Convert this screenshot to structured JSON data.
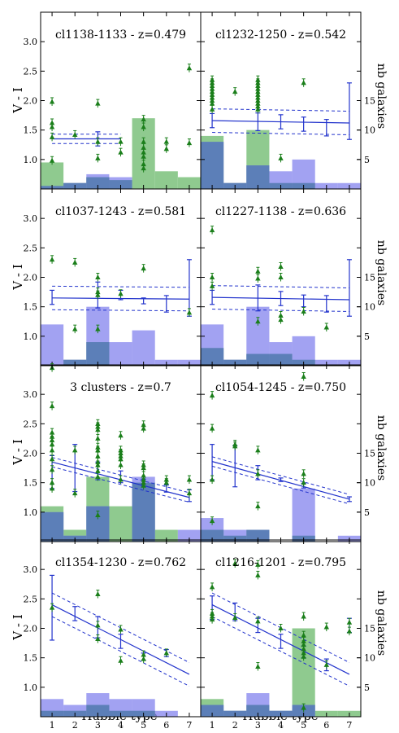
{
  "figure": {
    "ylabel": "V - I",
    "xlabel": "Hubble type",
    "right_label": "nb galaxies",
    "x_ticks": [
      "1",
      "2",
      "3",
      "4",
      "5",
      "6",
      "7"
    ],
    "y_ticks": [
      "1.0",
      "1.5",
      "2.0",
      "2.5",
      "3.0"
    ],
    "count_ticks": [
      "5",
      "10",
      "15"
    ]
  },
  "colors": {
    "points": "#1b7f1b",
    "fit": "#2233cc",
    "hist_green": "#8fca8f",
    "hist_blue": "#8888ee",
    "overlap": "#5c7fb8"
  },
  "chart_data": [
    {
      "type": "scatter+histogram",
      "title": "cl1138-1133 - z=0.479",
      "xlim": [
        0.5,
        7.5
      ],
      "ylim": [
        0.5,
        3.5
      ],
      "count_lim": [
        0,
        30
      ],
      "fit_line": {
        "x": [
          1,
          4
        ],
        "y": [
          1.35,
          1.35
        ],
        "band": 0.08
      },
      "error_bars": [
        {
          "x": 3,
          "y": 1.35,
          "err": 0.12
        }
      ],
      "points": [
        [
          1,
          1.98
        ],
        [
          1,
          1.62
        ],
        [
          1,
          1.55
        ],
        [
          1,
          1.38
        ],
        [
          1,
          0.98
        ],
        [
          2,
          1.42
        ],
        [
          3,
          1.95
        ],
        [
          3,
          1.3
        ],
        [
          3,
          1.02
        ],
        [
          4,
          1.3
        ],
        [
          4,
          1.12
        ],
        [
          5,
          1.68
        ],
        [
          5,
          1.55
        ],
        [
          5,
          1.3
        ],
        [
          5,
          1.2
        ],
        [
          5,
          1.12
        ],
        [
          5,
          1.05
        ],
        [
          5,
          0.92
        ],
        [
          5,
          0.85
        ],
        [
          6,
          1.3
        ],
        [
          6,
          1.18
        ],
        [
          7,
          2.55
        ],
        [
          7,
          1.28
        ]
      ],
      "hist_green": [
        4.5,
        1,
        2,
        1.5,
        12,
        3,
        2
      ],
      "hist_blue": [
        0.5,
        1,
        2.5,
        2,
        0,
        0,
        0
      ]
    },
    {
      "type": "scatter+histogram",
      "title": "cl1232-1250 - z=0.542",
      "xlim": [
        0.5,
        7.5
      ],
      "ylim": [
        0.5,
        3.5
      ],
      "count_lim": [
        0,
        30
      ],
      "fit_line": {
        "x": [
          1,
          7
        ],
        "y": [
          1.66,
          1.62
        ],
        "band": 0.2
      },
      "error_bars": [
        {
          "x": 1,
          "y": 1.66,
          "err": 0.12
        },
        {
          "x": 3,
          "y": 1.64,
          "err": 0.15
        },
        {
          "x": 4,
          "y": 1.64,
          "err": 0.12
        },
        {
          "x": 5,
          "y": 1.6,
          "err": 0.12
        },
        {
          "x": 6,
          "y": 1.54,
          "err": 0.14
        },
        {
          "x": 7,
          "y": 1.82,
          "err": 0.48
        }
      ],
      "points": [
        [
          1,
          2.35
        ],
        [
          1,
          2.3
        ],
        [
          1,
          2.25
        ],
        [
          1,
          2.2
        ],
        [
          1,
          2.15
        ],
        [
          1,
          2.1
        ],
        [
          1,
          2.05
        ],
        [
          1,
          2.0
        ],
        [
          1,
          1.95
        ],
        [
          1,
          1.85
        ],
        [
          2,
          2.15
        ],
        [
          3,
          2.35
        ],
        [
          3,
          2.3
        ],
        [
          3,
          2.25
        ],
        [
          3,
          2.2
        ],
        [
          3,
          2.15
        ],
        [
          3,
          2.1
        ],
        [
          3,
          2.05
        ],
        [
          3,
          2.0
        ],
        [
          3,
          1.95
        ],
        [
          3,
          1.9
        ],
        [
          3,
          1.85
        ],
        [
          4,
          1.02
        ],
        [
          5,
          2.3
        ]
      ],
      "hist_green": [
        9,
        1,
        10,
        1,
        1,
        0,
        0
      ],
      "hist_blue": [
        8,
        1,
        4,
        3,
        5,
        1,
        1
      ]
    },
    {
      "type": "scatter+histogram",
      "title": "cl1037-1243 - z=0.581",
      "xlim": [
        0.5,
        7.5
      ],
      "ylim": [
        0.5,
        3.5
      ],
      "count_lim": [
        0,
        30
      ],
      "fit_line": {
        "x": [
          1,
          7
        ],
        "y": [
          1.65,
          1.63
        ],
        "band": 0.2
      },
      "error_bars": [
        {
          "x": 1,
          "y": 1.66,
          "err": 0.12
        },
        {
          "x": 3,
          "y": 1.7,
          "err": 0.22
        },
        {
          "x": 4,
          "y": 1.7,
          "err": 0.08
        },
        {
          "x": 5,
          "y": 1.6,
          "err": 0.05
        },
        {
          "x": 6,
          "y": 1.55,
          "err": 0.14
        },
        {
          "x": 7,
          "y": 1.82,
          "err": 0.48
        }
      ],
      "points": [
        [
          1,
          2.3
        ],
        [
          2,
          2.25
        ],
        [
          2,
          1.12
        ],
        [
          3,
          2.0
        ],
        [
          3,
          1.75
        ],
        [
          3,
          1.7
        ],
        [
          3,
          1.12
        ],
        [
          4,
          1.72
        ],
        [
          5,
          2.15
        ],
        [
          7,
          1.4
        ]
      ],
      "hist_green": [
        0,
        1,
        4,
        0,
        0,
        0,
        0
      ],
      "hist_blue": [
        7,
        1,
        10,
        4,
        6,
        1,
        1
      ]
    },
    {
      "type": "scatter+histogram",
      "title": "cl1227-1138 - z=0.636",
      "xlim": [
        0.5,
        7.5
      ],
      "ylim": [
        0.5,
        3.5
      ],
      "count_lim": [
        0,
        30
      ],
      "fit_line": {
        "x": [
          1,
          7
        ],
        "y": [
          1.66,
          1.62
        ],
        "band": 0.2
      },
      "error_bars": [
        {
          "x": 1,
          "y": 1.66,
          "err": 0.12
        },
        {
          "x": 3,
          "y": 1.65,
          "err": 0.22
        },
        {
          "x": 4,
          "y": 1.64,
          "err": 0.12
        },
        {
          "x": 5,
          "y": 1.6,
          "err": 0.1
        },
        {
          "x": 6,
          "y": 1.55,
          "err": 0.14
        },
        {
          "x": 7,
          "y": 1.82,
          "err": 0.48
        }
      ],
      "points": [
        [
          1,
          2.8
        ],
        [
          1,
          2.0
        ],
        [
          1,
          1.85
        ],
        [
          3,
          2.1
        ],
        [
          3,
          1.98
        ],
        [
          3,
          1.25
        ],
        [
          4,
          2.18
        ],
        [
          4,
          2.0
        ],
        [
          4,
          1.35
        ],
        [
          4,
          1.28
        ],
        [
          5,
          1.42
        ],
        [
          6,
          1.15
        ]
      ],
      "hist_green": [
        3,
        1,
        2,
        2,
        1,
        0,
        0
      ],
      "hist_blue": [
        7,
        1,
        10,
        4,
        5,
        1,
        1
      ]
    },
    {
      "type": "scatter+histogram",
      "title": "3 clusters - z=0.7",
      "xlim": [
        0.5,
        7.5
      ],
      "ylim": [
        0.5,
        3.5
      ],
      "count_lim": [
        0,
        30
      ],
      "fit_line": {
        "x": [
          1,
          7
        ],
        "y": [
          1.85,
          1.25
        ],
        "band": 0.08
      },
      "error_bars": [
        {
          "x": 1,
          "y": 1.68,
          "err": 0.28
        },
        {
          "x": 2,
          "y": 1.75,
          "err": 0.4
        },
        {
          "x": 3,
          "y": 1.7,
          "err": 0.15
        },
        {
          "x": 4,
          "y": 1.6,
          "err": 0.1
        },
        {
          "x": 5,
          "y": 1.5,
          "err": 0.06
        },
        {
          "x": 6,
          "y": 1.4,
          "err": 0.06
        },
        {
          "x": 7,
          "y": 1.28,
          "err": 0.1
        }
      ],
      "points": [
        [
          1,
          3.45
        ],
        [
          1,
          2.8
        ],
        [
          1,
          2.35
        ],
        [
          1,
          2.28
        ],
        [
          1,
          2.22
        ],
        [
          1,
          2.15
        ],
        [
          1,
          2.05
        ],
        [
          1,
          1.9
        ],
        [
          1,
          1.72
        ],
        [
          1,
          1.5
        ],
        [
          1,
          1.4
        ],
        [
          2,
          2.05
        ],
        [
          2,
          1.32
        ],
        [
          3,
          2.5
        ],
        [
          3,
          2.45
        ],
        [
          3,
          2.4
        ],
        [
          3,
          2.25
        ],
        [
          3,
          2.1
        ],
        [
          3,
          2.05
        ],
        [
          3,
          1.95
        ],
        [
          3,
          1.85
        ],
        [
          3,
          1.8
        ],
        [
          3,
          1.7
        ],
        [
          3,
          1.6
        ],
        [
          3,
          0.95
        ],
        [
          4,
          2.3
        ],
        [
          4,
          2.05
        ],
        [
          4,
          2.0
        ],
        [
          4,
          1.95
        ],
        [
          4,
          1.9
        ],
        [
          4,
          1.8
        ],
        [
          4,
          1.55
        ],
        [
          5,
          2.48
        ],
        [
          5,
          2.42
        ],
        [
          5,
          1.8
        ],
        [
          5,
          1.75
        ],
        [
          5,
          1.62
        ],
        [
          5,
          1.55
        ],
        [
          5,
          1.5
        ],
        [
          5,
          1.45
        ],
        [
          6,
          1.55
        ],
        [
          6,
          1.5
        ],
        [
          7,
          1.55
        ],
        [
          7,
          1.32
        ]
      ],
      "hist_green": [
        6,
        2,
        11,
        6,
        10,
        2,
        0
      ],
      "hist_blue": [
        5,
        1,
        6,
        0,
        11,
        0,
        2
      ]
    },
    {
      "type": "scatter+histogram",
      "title": "cl1054-1245 - z=0.750",
      "xlim": [
        0.5,
        7.5
      ],
      "ylim": [
        0.5,
        3.5
      ],
      "count_lim": [
        0,
        30
      ],
      "fit_line": {
        "x": [
          1,
          7
        ],
        "y": [
          1.86,
          1.22
        ],
        "band": 0.08
      },
      "error_bars": [
        {
          "x": 1,
          "y": 1.85,
          "err": 0.3
        },
        {
          "x": 2,
          "y": 1.78,
          "err": 0.35
        },
        {
          "x": 3,
          "y": 1.67,
          "err": 0.12
        },
        {
          "x": 4,
          "y": 1.55,
          "err": 0.03
        },
        {
          "x": 5,
          "y": 1.45,
          "err": 0.04
        },
        {
          "x": 7,
          "y": 1.22,
          "err": 0.04
        }
      ],
      "points": [
        [
          1,
          2.98
        ],
        [
          1,
          2.42
        ],
        [
          1,
          1.55
        ],
        [
          1,
          0.85
        ],
        [
          2,
          2.15
        ],
        [
          2,
          2.12
        ],
        [
          3,
          2.05
        ],
        [
          3,
          1.65
        ],
        [
          3,
          1.1
        ],
        [
          5,
          3.3
        ],
        [
          5,
          1.65
        ],
        [
          5,
          1.5
        ]
      ],
      "hist_green": [
        2,
        1,
        2,
        0,
        1,
        0,
        0
      ],
      "hist_blue": [
        4,
        2,
        2,
        0,
        9,
        0,
        1
      ]
    },
    {
      "type": "scatter+histogram",
      "title": "cl1354-1230 - z=0.762",
      "xlim": [
        0.5,
        7.5
      ],
      "ylim": [
        0.5,
        3.5
      ],
      "count_lim": [
        0,
        30
      ],
      "fit_line": {
        "x": [
          1,
          7
        ],
        "y": [
          2.4,
          1.22
        ],
        "band": 0.2
      },
      "error_bars": [
        {
          "x": 1,
          "y": 2.35,
          "err": 0.55
        },
        {
          "x": 2,
          "y": 2.25,
          "err": 0.12
        },
        {
          "x": 3,
          "y": 2.02,
          "err": 0.18
        },
        {
          "x": 4,
          "y": 1.78,
          "err": 0.12
        },
        {
          "x": 5,
          "y": 1.52,
          "err": 0.06
        },
        {
          "x": 6,
          "y": 1.58,
          "err": 0.06
        }
      ],
      "points": [
        [
          1,
          2.35
        ],
        [
          3,
          2.58
        ],
        [
          3,
          2.05
        ],
        [
          3,
          1.82
        ],
        [
          4,
          1.98
        ],
        [
          4,
          1.45
        ],
        [
          5,
          1.55
        ],
        [
          5,
          1.48
        ],
        [
          6,
          1.58
        ]
      ],
      "hist_green": [
        1,
        1,
        2,
        1,
        1,
        0,
        0
      ],
      "hist_blue": [
        3,
        2,
        4,
        3,
        3,
        1,
        0
      ]
    },
    {
      "type": "scatter+histogram",
      "title": "cl1216-1201 - z=0.795",
      "xlim": [
        0.5,
        7.5
      ],
      "ylim": [
        0.5,
        3.5
      ],
      "count_lim": [
        0,
        30
      ],
      "fit_line": {
        "x": [
          1,
          7
        ],
        "y": [
          2.4,
          1.22
        ],
        "band": 0.2
      },
      "error_bars": [
        {
          "x": 1,
          "y": 2.35,
          "err": 0.2
        },
        {
          "x": 2,
          "y": 2.28,
          "err": 0.15
        },
        {
          "x": 3,
          "y": 2.05,
          "err": 0.12
        },
        {
          "x": 4,
          "y": 1.78,
          "err": 0.12
        },
        {
          "x": 5,
          "y": 1.6,
          "err": 0.1
        },
        {
          "x": 6,
          "y": 1.38,
          "err": 0.1
        },
        {
          "x": 7,
          "y": 2.05,
          "err": 0.12
        }
      ],
      "points": [
        [
          1,
          2.7
        ],
        [
          1,
          2.25
        ],
        [
          1,
          2.2
        ],
        [
          1,
          2.15
        ],
        [
          2,
          3.1
        ],
        [
          2,
          2.18
        ],
        [
          3,
          3.08
        ],
        [
          3,
          2.9
        ],
        [
          3,
          2.12
        ],
        [
          3,
          1.35
        ],
        [
          4,
          2.0
        ],
        [
          5,
          2.2
        ],
        [
          5,
          1.88
        ],
        [
          5,
          1.78
        ],
        [
          5,
          1.72
        ],
        [
          5,
          1.65
        ],
        [
          5,
          1.58
        ],
        [
          5,
          1.52
        ],
        [
          5,
          0.65
        ],
        [
          6,
          2.02
        ],
        [
          6,
          1.38
        ],
        [
          7,
          2.1
        ],
        [
          7,
          1.95
        ]
      ],
      "hist_green": [
        3,
        1,
        2,
        1,
        15,
        1,
        1
      ],
      "hist_blue": [
        2,
        1,
        4,
        1,
        2,
        0,
        0
      ]
    }
  ]
}
